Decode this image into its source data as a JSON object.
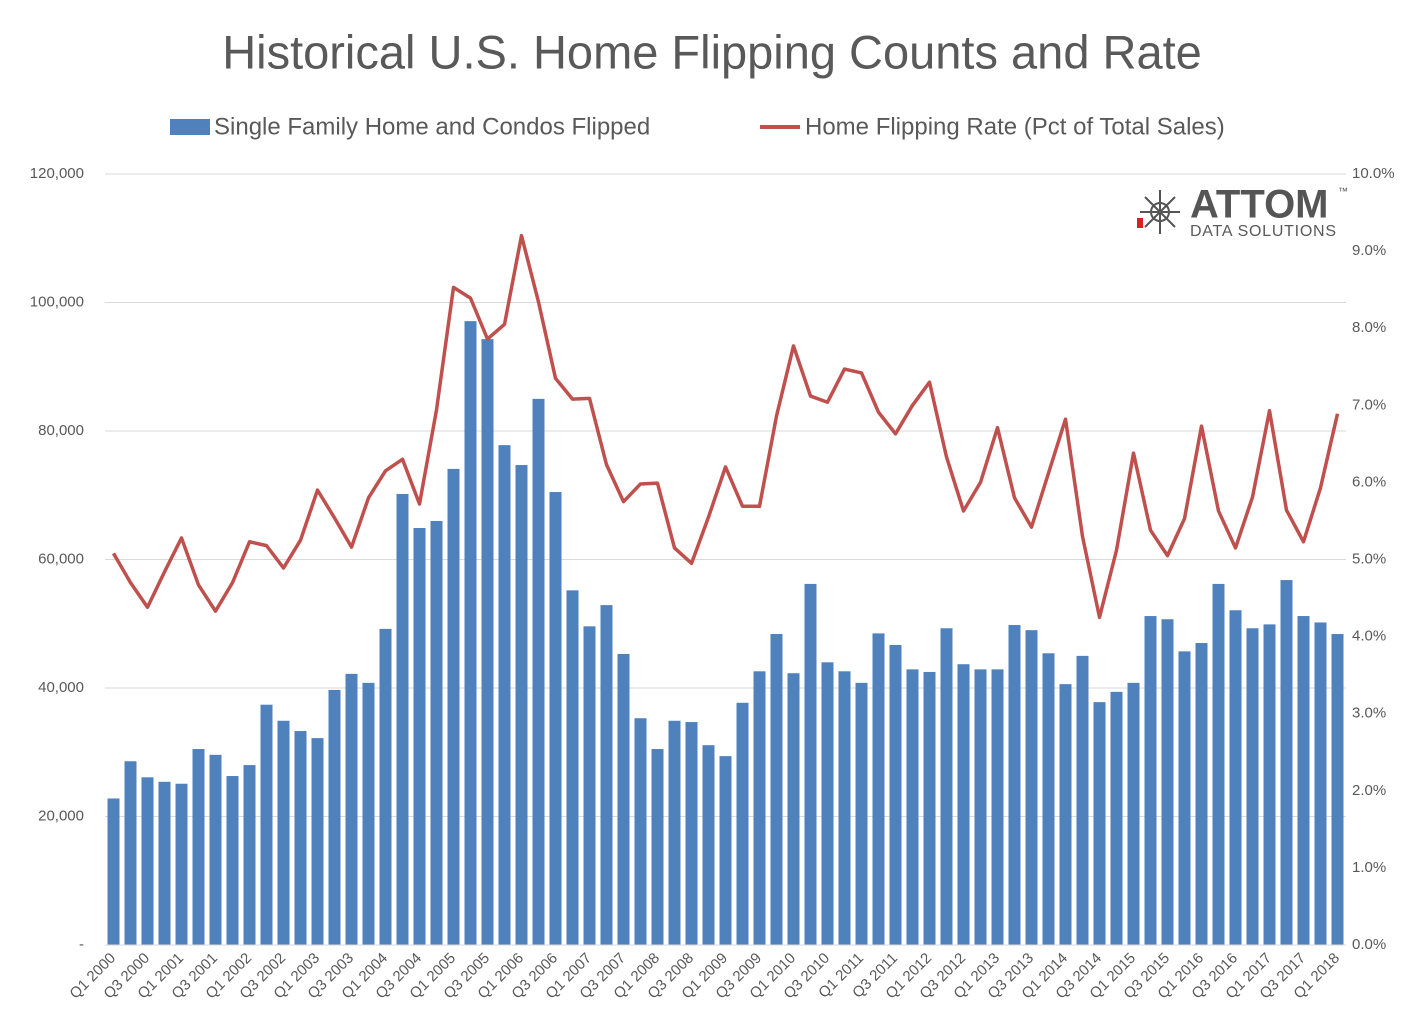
{
  "chart_data": {
    "type": "bar-line",
    "title": "Historical U.S. Home Flipping Counts and Rate",
    "logo_text": "ATTOM",
    "logo_mark": "™",
    "logo_subtext": "DATA SOLUTIONS",
    "categories": [
      "Q1 2000",
      null,
      "Q3 2000",
      null,
      "Q1 2001",
      null,
      "Q3 2001",
      null,
      "Q1 2002",
      null,
      "Q3 2002",
      null,
      "Q1 2003",
      null,
      "Q3 2003",
      null,
      "Q1 2004",
      null,
      "Q3 2004",
      null,
      "Q1 2005",
      null,
      "Q3 2005",
      null,
      "Q1 2006",
      null,
      "Q3 2006",
      null,
      "Q1 2007",
      null,
      "Q3 2007",
      null,
      "Q1 2008",
      null,
      "Q3 2008",
      null,
      "Q1 2009",
      null,
      "Q3 2009",
      null,
      "Q1 2010",
      null,
      "Q3 2010",
      null,
      "Q1 2011",
      null,
      "Q3 2011",
      null,
      "Q1 2012",
      null,
      "Q3 2012",
      null,
      "Q1 2013",
      null,
      "Q3 2013",
      null,
      "Q1 2014",
      null,
      "Q3 2014",
      null,
      "Q1 2015",
      null,
      "Q3 2015",
      null,
      "Q1 2016",
      null,
      "Q3 2016",
      null,
      "Q1 2017",
      null,
      "Q3 2017",
      null,
      "Q1 2018"
    ],
    "series": [
      {
        "name": "Single Family Home and Condos Flipped",
        "type": "bar",
        "color": "#4f81bd",
        "values": [
          22800,
          28600,
          26100,
          25400,
          25100,
          30500,
          29600,
          26300,
          28000,
          37400,
          34900,
          33300,
          32200,
          39700,
          42200,
          40800,
          49200,
          70200,
          64900,
          66000,
          74100,
          97100,
          94300,
          77800,
          74700,
          85000,
          70500,
          55200,
          49600,
          52900,
          45300,
          35300,
          30500,
          34900,
          34700,
          31100,
          29400,
          37700,
          42600,
          48400,
          42300,
          56200,
          44000,
          42600,
          40800,
          48500,
          46700,
          42900,
          42500,
          49300,
          43700,
          42900,
          42900,
          49800,
          49000,
          45400,
          40600,
          45000,
          37800,
          39400,
          40800,
          51200,
          50700,
          45700,
          47000,
          56200,
          52100,
          49300,
          49900,
          56800,
          51200,
          50200,
          48400
        ]
      },
      {
        "name": "Home Flipping Rate (Pct of Total Sales)",
        "type": "line",
        "axis": "y2",
        "color": "#c0504d",
        "values": [
          5.08,
          4.7,
          4.38,
          4.84,
          5.28,
          4.67,
          4.33,
          4.7,
          5.23,
          5.18,
          4.89,
          5.25,
          5.9,
          5.54,
          5.16,
          5.8,
          6.15,
          6.3,
          5.72,
          6.94,
          8.53,
          8.39,
          7.86,
          8.05,
          9.2,
          8.34,
          7.35,
          7.08,
          7.09,
          6.23,
          5.75,
          5.98,
          5.99,
          5.15,
          4.95,
          5.55,
          6.2,
          5.69,
          5.69,
          6.86,
          7.77,
          7.12,
          7.04,
          7.47,
          7.42,
          6.91,
          6.63,
          7.0,
          7.3,
          6.33,
          5.63,
          6.0,
          6.71,
          5.8,
          5.42,
          6.12,
          6.82,
          5.3,
          4.25,
          5.12,
          6.38,
          5.38,
          5.05,
          5.53,
          6.73,
          5.63,
          5.15,
          5.81,
          6.93,
          5.64,
          5.23,
          5.93,
          6.89
        ]
      }
    ],
    "ylim": [
      0,
      120000
    ],
    "yticks": [
      {
        "value": 0,
        "label": "-"
      },
      {
        "value": 20000,
        "label": "20,000"
      },
      {
        "value": 40000,
        "label": "40,000"
      },
      {
        "value": 60000,
        "label": "60,000"
      },
      {
        "value": 80000,
        "label": "80,000"
      },
      {
        "value": 100000,
        "label": "100,000"
      },
      {
        "value": 120000,
        "label": "120,000"
      }
    ],
    "y2lim": [
      0,
      10
    ],
    "y2ticks": [
      {
        "value": 0,
        "label": "0.0%"
      },
      {
        "value": 1,
        "label": "1.0%"
      },
      {
        "value": 2,
        "label": "2.0%"
      },
      {
        "value": 3,
        "label": "3.0%"
      },
      {
        "value": 4,
        "label": "4.0%"
      },
      {
        "value": 5,
        "label": "5.0%"
      },
      {
        "value": 6,
        "label": "6.0%"
      },
      {
        "value": 7,
        "label": "7.0%"
      },
      {
        "value": 8,
        "label": "8.0%"
      },
      {
        "value": 9,
        "label": "9.0%"
      },
      {
        "value": 10,
        "label": "10.0%"
      }
    ],
    "grid": true,
    "legend": "top"
  }
}
